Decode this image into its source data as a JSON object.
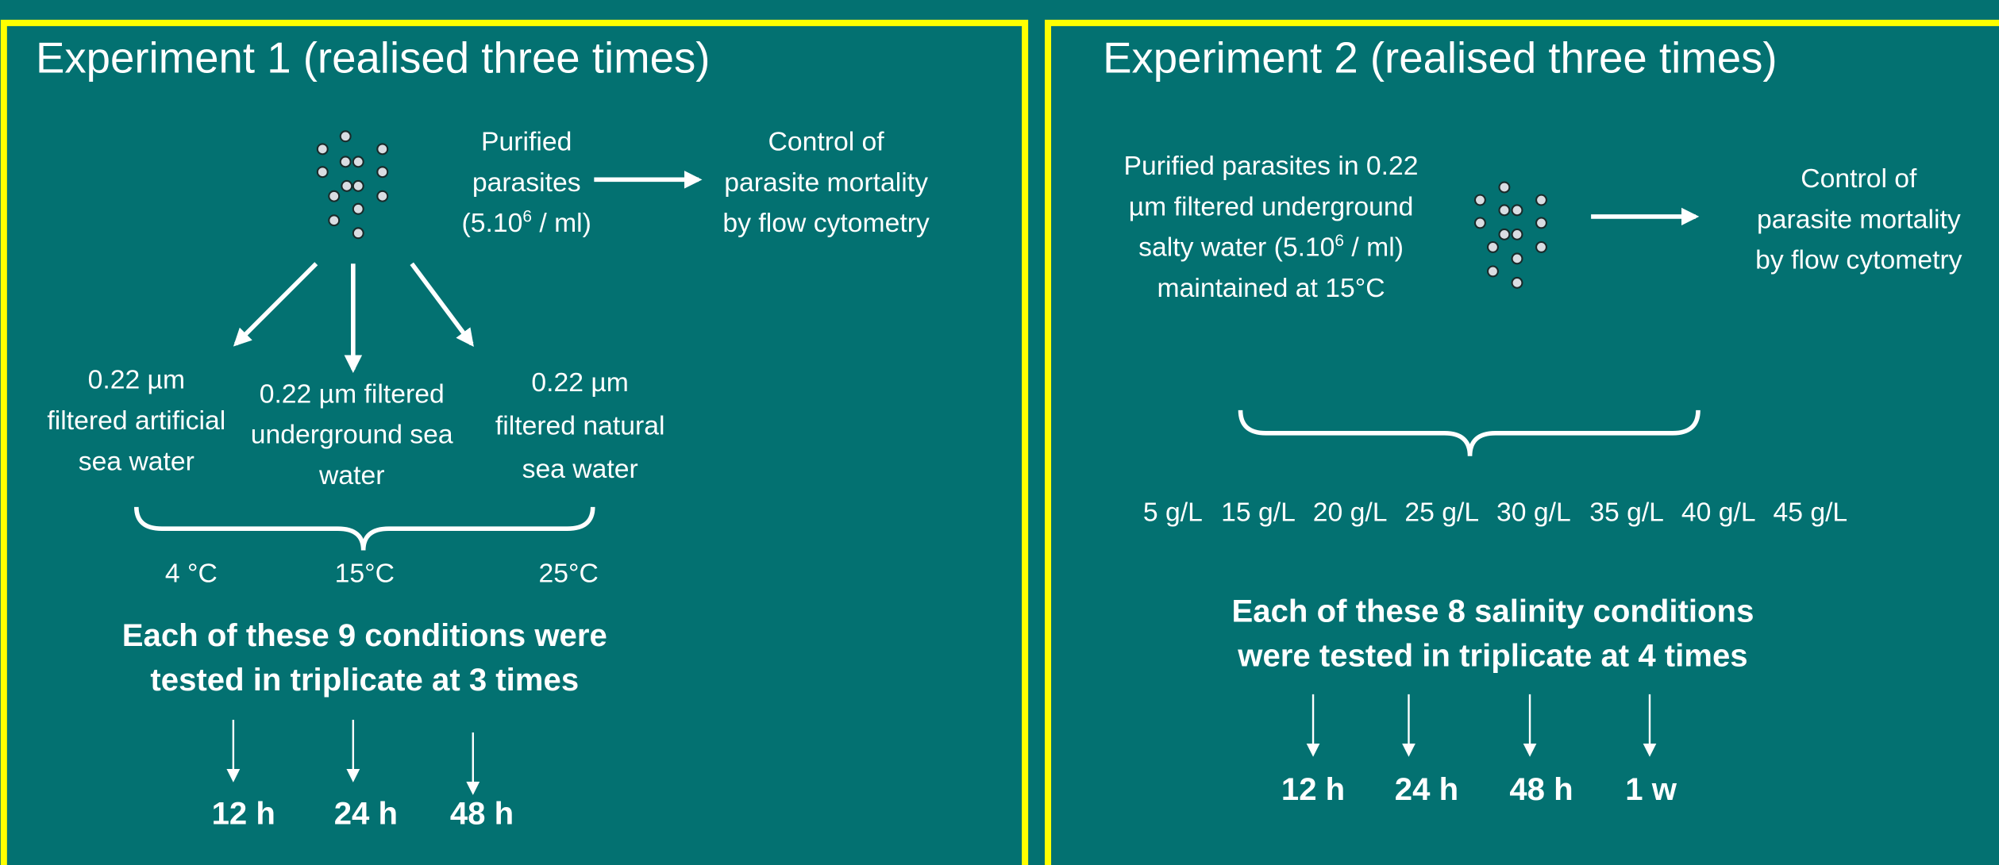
{
  "panels": [
    {
      "title": "Experiment 1 (realised three times)",
      "source": {
        "lines_before": [
          "Purified",
          "parasites"
        ],
        "concentration": {
          "prefix": "(5.10",
          "exponent": "6",
          "suffix": " / ml)"
        },
        "lines_after": []
      },
      "control": [
        "Control of",
        "parasite mortality",
        "by flow cytometry"
      ],
      "media": [
        [
          "0.22 µm",
          "filtered artificial",
          "sea water"
        ],
        [
          "0.22 µm filtered",
          "underground sea",
          "water"
        ],
        [
          "0.22 µm",
          "filtered natural",
          "sea water"
        ]
      ],
      "conditions": [
        "4 °C",
        "15°C",
        "25°C"
      ],
      "summary": [
        "Each of these 9 conditions were",
        "tested in triplicate at 3 times"
      ],
      "times": [
        "12 h",
        "24 h",
        "48 h"
      ]
    },
    {
      "title": "Experiment 2 (realised three times)",
      "source": {
        "lines_before": [
          "Purified parasites in 0.22",
          "µm filtered underground"
        ],
        "concentration": {
          "prefix": "salty water (5.10",
          "exponent": "6",
          "suffix": " / ml)"
        },
        "lines_after": [
          "maintained at 15°C"
        ]
      },
      "control": [
        "Control of",
        "parasite mortality",
        "by flow cytometry"
      ],
      "conditions": [
        "5 g/L",
        "15 g/L",
        "20 g/L",
        "25 g/L",
        "30 g/L",
        "35 g/L",
        "40 g/L",
        "45 g/L"
      ],
      "summary": [
        "Each of these 8 salinity conditions",
        "were tested in triplicate at 4 times"
      ],
      "times": [
        "12 h",
        "24 h",
        "48 h",
        "1 w"
      ]
    }
  ]
}
